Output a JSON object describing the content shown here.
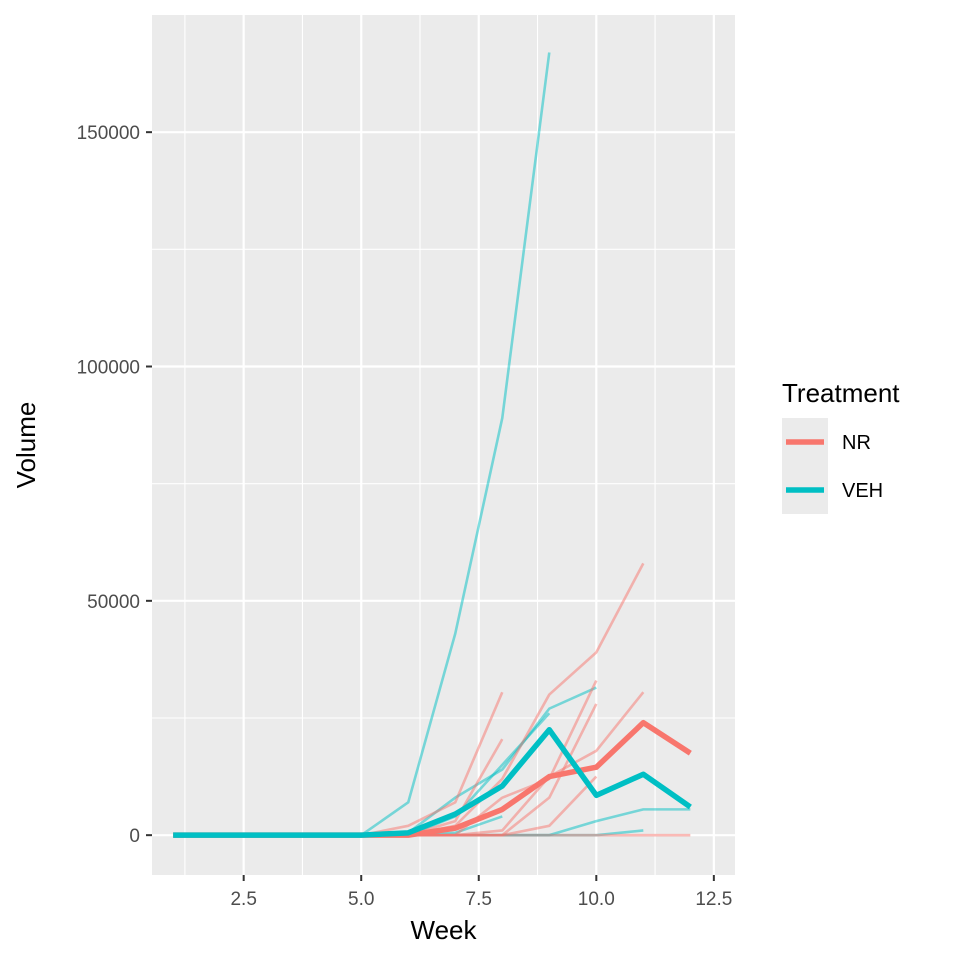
{
  "chart_data": {
    "type": "line",
    "title": "",
    "xlabel": "Week",
    "ylabel": "Volume",
    "xlim": [
      0.55,
      12.95
    ],
    "ylim": [
      -8500,
      175000
    ],
    "x_ticks": [
      2.5,
      5.0,
      7.5,
      10.0,
      12.5
    ],
    "x_tick_labels": [
      "2.5",
      "5.0",
      "7.5",
      "10.0",
      "12.5"
    ],
    "y_ticks": [
      0,
      50000,
      100000,
      150000
    ],
    "y_tick_labels": [
      "0",
      "50000",
      "100000",
      "150000"
    ],
    "grid": true,
    "legend": {
      "title": "Treatment",
      "placement": "right",
      "entries": [
        {
          "label": "NR",
          "color": "#F8766D"
        },
        {
          "label": "VEH",
          "color": "#00BFC4"
        }
      ]
    },
    "colors": {
      "NR": "#F8766D",
      "VEH": "#00BFC4",
      "panel": "#EBEBEB",
      "grid": "#FFFFFF"
    },
    "individual_series": [
      {
        "group": "VEH",
        "x": [
          1,
          2,
          3,
          4,
          5,
          6,
          7,
          8,
          9
        ],
        "y": [
          0,
          0,
          0,
          0,
          0,
          7000,
          43000,
          89000,
          167000
        ]
      },
      {
        "group": "VEH",
        "x": [
          1,
          2,
          3,
          4,
          5,
          6,
          7,
          8,
          9,
          10
        ],
        "y": [
          0,
          0,
          0,
          0,
          0,
          500,
          8000,
          14000,
          27000,
          31500
        ]
      },
      {
        "group": "VEH",
        "x": [
          1,
          2,
          3,
          4,
          5,
          6,
          7,
          8,
          9
        ],
        "y": [
          0,
          0,
          0,
          0,
          0,
          0,
          4000,
          15000,
          26000
        ]
      },
      {
        "group": "VEH",
        "x": [
          1,
          2,
          3,
          4,
          5,
          6,
          7,
          8
        ],
        "y": [
          0,
          0,
          0,
          0,
          0,
          0,
          500,
          4000
        ]
      },
      {
        "group": "VEH",
        "x": [
          1,
          2,
          3,
          4,
          5,
          6,
          7,
          8,
          9,
          10,
          11,
          12
        ],
        "y": [
          0,
          0,
          0,
          0,
          0,
          0,
          0,
          0,
          0,
          3000,
          5500,
          5500
        ]
      },
      {
        "group": "VEH",
        "x": [
          1,
          2,
          3,
          4,
          5,
          6,
          7,
          8,
          9,
          10,
          11
        ],
        "y": [
          0,
          0,
          0,
          0,
          0,
          0,
          0,
          0,
          0,
          0,
          1000
        ]
      },
      {
        "group": "NR",
        "x": [
          1,
          2,
          3,
          4,
          5,
          6,
          7,
          8
        ],
        "y": [
          0,
          0,
          0,
          0,
          0,
          2000,
          7000,
          30500
        ]
      },
      {
        "group": "NR",
        "x": [
          1,
          2,
          3,
          4,
          5,
          6,
          7,
          8
        ],
        "y": [
          0,
          0,
          0,
          0,
          0,
          0,
          3000,
          20500
        ]
      },
      {
        "group": "NR",
        "x": [
          1,
          2,
          3,
          4,
          5,
          6,
          7,
          8,
          9,
          10,
          11
        ],
        "y": [
          0,
          0,
          0,
          0,
          0,
          0,
          2000,
          12000,
          30000,
          39000,
          58000
        ]
      },
      {
        "group": "NR",
        "x": [
          1,
          2,
          3,
          4,
          5,
          6,
          7,
          8,
          9,
          10
        ],
        "y": [
          0,
          0,
          0,
          0,
          0,
          0,
          0,
          8000,
          12000,
          33000
        ]
      },
      {
        "group": "NR",
        "x": [
          1,
          2,
          3,
          4,
          5,
          6,
          7,
          8,
          9,
          10,
          11
        ],
        "y": [
          0,
          0,
          0,
          0,
          0,
          0,
          0,
          1000,
          12500,
          18000,
          30500
        ]
      },
      {
        "group": "NR",
        "x": [
          1,
          2,
          3,
          4,
          5,
          6,
          7,
          8,
          9,
          10
        ],
        "y": [
          0,
          0,
          0,
          0,
          0,
          0,
          0,
          0,
          8000,
          28000
        ]
      },
      {
        "group": "NR",
        "x": [
          1,
          2,
          3,
          4,
          5,
          6,
          7,
          8,
          9,
          10
        ],
        "y": [
          0,
          0,
          0,
          0,
          0,
          0,
          0,
          0,
          2000,
          12500
        ]
      },
      {
        "group": "NR",
        "x": [
          1,
          2,
          3,
          4,
          5,
          6,
          7,
          8,
          9,
          10,
          11,
          12
        ],
        "y": [
          0,
          0,
          0,
          0,
          0,
          0,
          0,
          0,
          0,
          0,
          0,
          0
        ]
      }
    ],
    "series": [
      {
        "name": "NR",
        "x": [
          1,
          2,
          3,
          4,
          5,
          6,
          7,
          8,
          9,
          10,
          11,
          12
        ],
        "y": [
          0,
          0,
          0,
          0,
          0,
          0,
          1500,
          5500,
          12500,
          14500,
          24000,
          17500
        ]
      },
      {
        "name": "VEH",
        "x": [
          1,
          2,
          3,
          4,
          5,
          6,
          7,
          8,
          9,
          10,
          11,
          12
        ],
        "y": [
          0,
          0,
          0,
          0,
          0,
          500,
          4500,
          10500,
          22500,
          8500,
          13000,
          6000
        ]
      }
    ]
  }
}
